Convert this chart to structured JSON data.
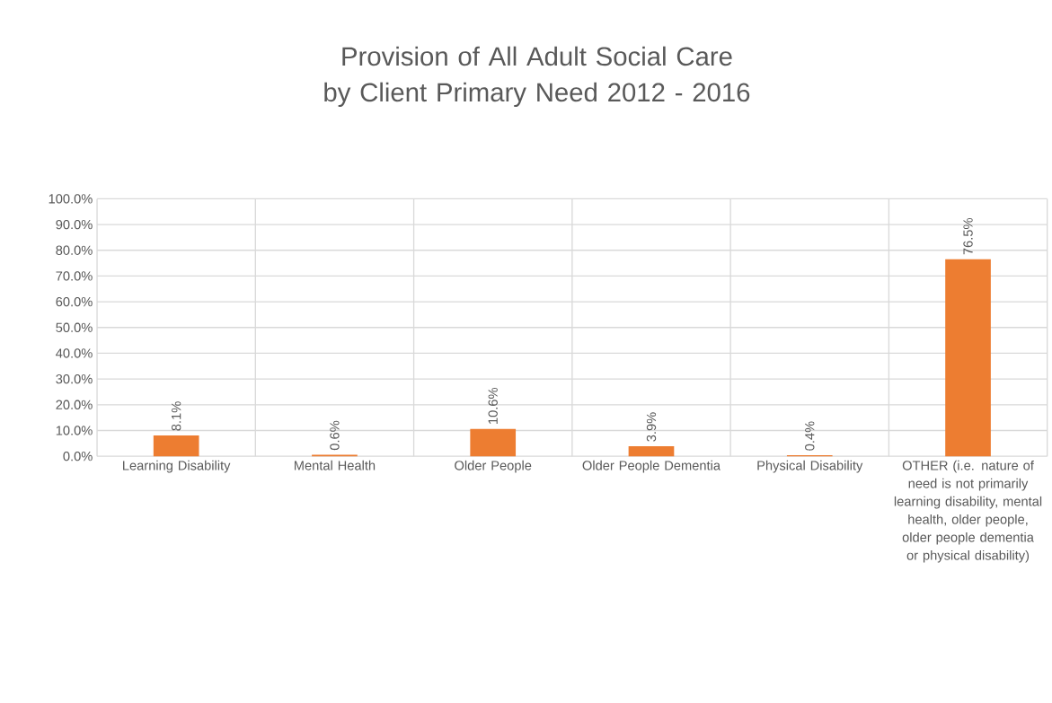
{
  "chart_data": {
    "type": "bar",
    "title": "Provision of All Adult Social Care by Client Primary Need 2012 - 2016",
    "categories": [
      "Learning Disability",
      "Mental Health",
      "Older People",
      "Older People Dementia",
      "Physical Disability",
      "OTHER (i.e. nature of need is not primarily learning disability, mental health, older people, older people dementia or physical disability)"
    ],
    "values": [
      8.1,
      0.6,
      10.6,
      3.9,
      0.4,
      76.5
    ],
    "value_labels": [
      "8.1%",
      "0.6%",
      "10.6%",
      "3.9%",
      "0.4%",
      "76.5%"
    ],
    "color": "#ed7d31",
    "ylim": [
      0,
      100
    ],
    "yticks": [
      {
        "value": 0,
        "label": "0.0%"
      },
      {
        "value": 10,
        "label": "10.0%"
      },
      {
        "value": 20,
        "label": "20.0%"
      },
      {
        "value": 30,
        "label": "30.0%"
      },
      {
        "value": 40,
        "label": "40.0%"
      },
      {
        "value": 50,
        "label": "50.0%"
      },
      {
        "value": 60,
        "label": "60.0%"
      },
      {
        "value": 70,
        "label": "70.0%"
      },
      {
        "value": 80,
        "label": "80.0%"
      },
      {
        "value": 90,
        "label": "90.0%"
      },
      {
        "value": 100,
        "label": "100.0%"
      }
    ],
    "grid": true
  }
}
